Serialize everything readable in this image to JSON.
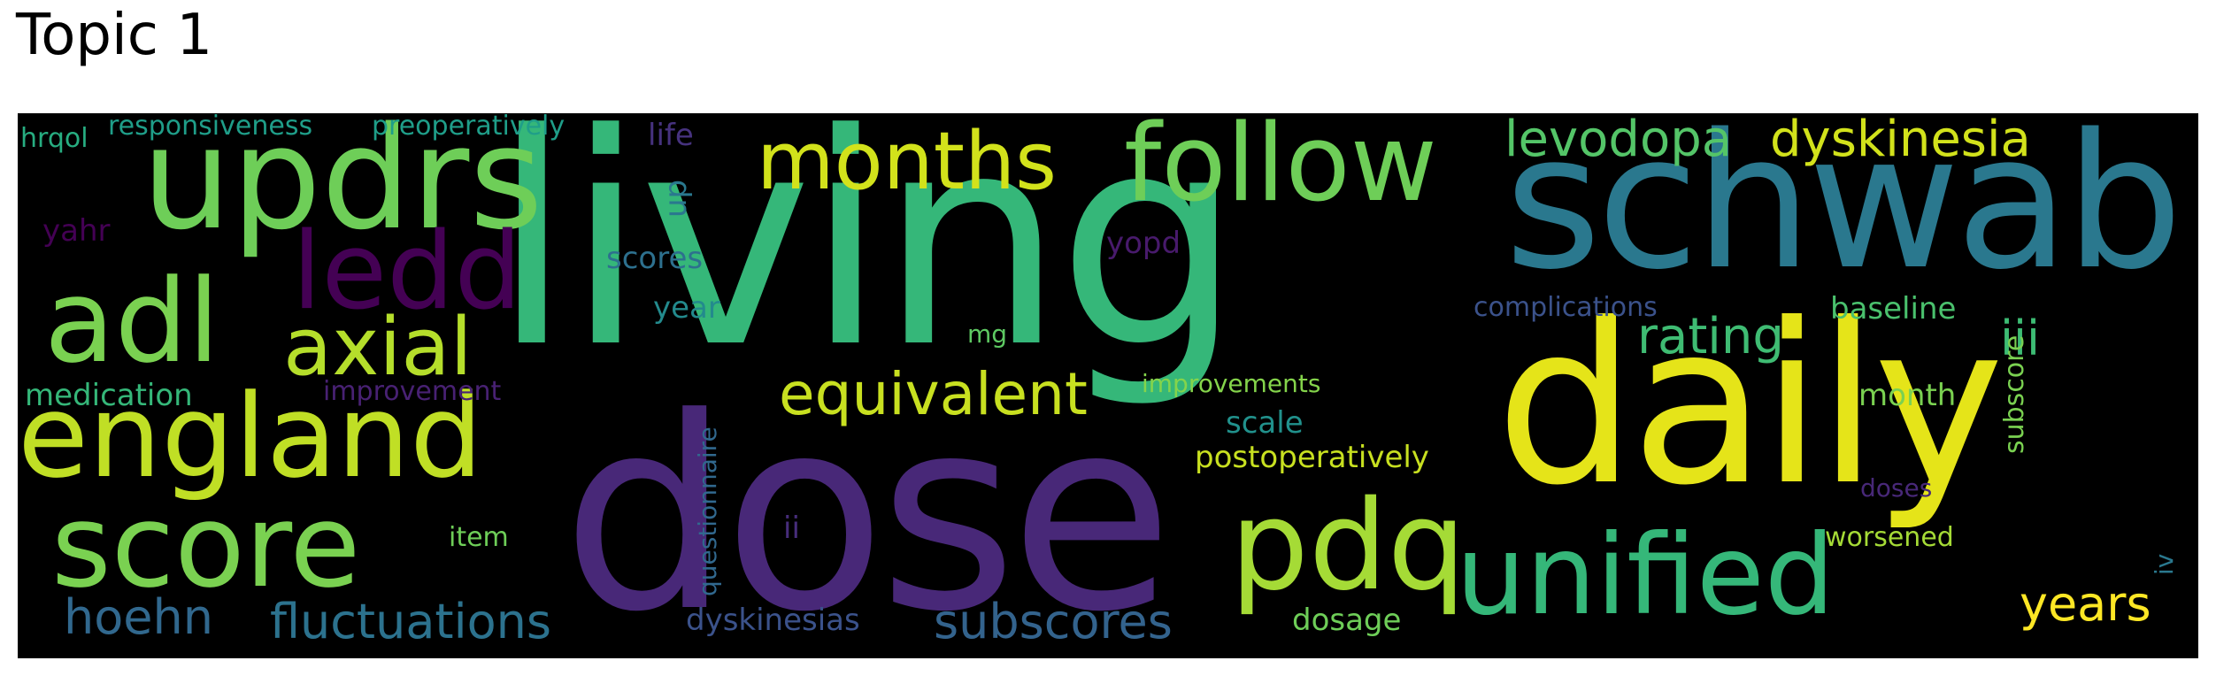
{
  "title": "Topic 1",
  "colors": {
    "background": "#000000",
    "figure_background": "#ffffff"
  },
  "words": [
    {
      "text": "living",
      "color": "#35b779"
    },
    {
      "text": "dose",
      "color": "#482878"
    },
    {
      "text": "daily",
      "color": "#e5e419"
    },
    {
      "text": "schwab",
      "color": "#2a788e"
    },
    {
      "text": "updrs",
      "color": "#6ece58"
    },
    {
      "text": "england",
      "color": "#c0df25"
    },
    {
      "text": "score",
      "color": "#7ad151"
    },
    {
      "text": "follow",
      "color": "#6ece58"
    },
    {
      "text": "unified",
      "color": "#35b779"
    },
    {
      "text": "pdq",
      "color": "#a5db36"
    },
    {
      "text": "adl",
      "color": "#7ad151"
    },
    {
      "text": "months",
      "color": "#d2e21b"
    },
    {
      "text": "ledd",
      "color": "#440154"
    },
    {
      "text": "axial",
      "color": "#b5de2b"
    },
    {
      "text": "equivalent",
      "color": "#c8e020"
    },
    {
      "text": "levodopa",
      "color": "#54c568"
    },
    {
      "text": "dyskinesia",
      "color": "#d2e21b"
    },
    {
      "text": "rating",
      "color": "#3fbc73"
    },
    {
      "text": "fluctuations",
      "color": "#2c728e"
    },
    {
      "text": "subscores",
      "color": "#33638d"
    },
    {
      "text": "hoehn",
      "color": "#31688e"
    },
    {
      "text": "years",
      "color": "#fde725"
    },
    {
      "text": "iii",
      "color": "#3dbc74"
    },
    {
      "text": "postoperatively",
      "color": "#c8e020"
    },
    {
      "text": "medication",
      "color": "#35b779"
    },
    {
      "text": "baseline",
      "color": "#4ac16d"
    },
    {
      "text": "complications",
      "color": "#3b528b"
    },
    {
      "text": "scores",
      "color": "#2d708e"
    },
    {
      "text": "improvements",
      "color": "#84d44b"
    },
    {
      "text": "scale",
      "color": "#21918c"
    },
    {
      "text": "year",
      "color": "#238a8d"
    },
    {
      "text": "dyskinesias",
      "color": "#3b528b"
    },
    {
      "text": "dosage",
      "color": "#6ece58"
    },
    {
      "text": "worsened",
      "color": "#a5db36"
    },
    {
      "text": "month",
      "color": "#7ad151"
    },
    {
      "text": "responsiveness",
      "color": "#1f9e89"
    },
    {
      "text": "preoperatively",
      "color": "#1f9e89"
    },
    {
      "text": "hrqol",
      "color": "#27ad81"
    },
    {
      "text": "life",
      "color": "#46327e"
    },
    {
      "text": "yahr",
      "color": "#440154"
    },
    {
      "text": "improvement",
      "color": "#482173"
    },
    {
      "text": "item",
      "color": "#6ece58"
    },
    {
      "text": "ii",
      "color": "#472d7b"
    },
    {
      "text": "mg",
      "color": "#5ec962"
    },
    {
      "text": "yopd",
      "color": "#481a6c"
    },
    {
      "text": "doses",
      "color": "#482878"
    },
    {
      "text": "questionnaire",
      "color": "#31688e"
    },
    {
      "text": "up",
      "color": "#2a788e"
    },
    {
      "text": "subscore",
      "color": "#7ad151"
    },
    {
      "text": "iv",
      "color": "#2a788e"
    }
  ]
}
